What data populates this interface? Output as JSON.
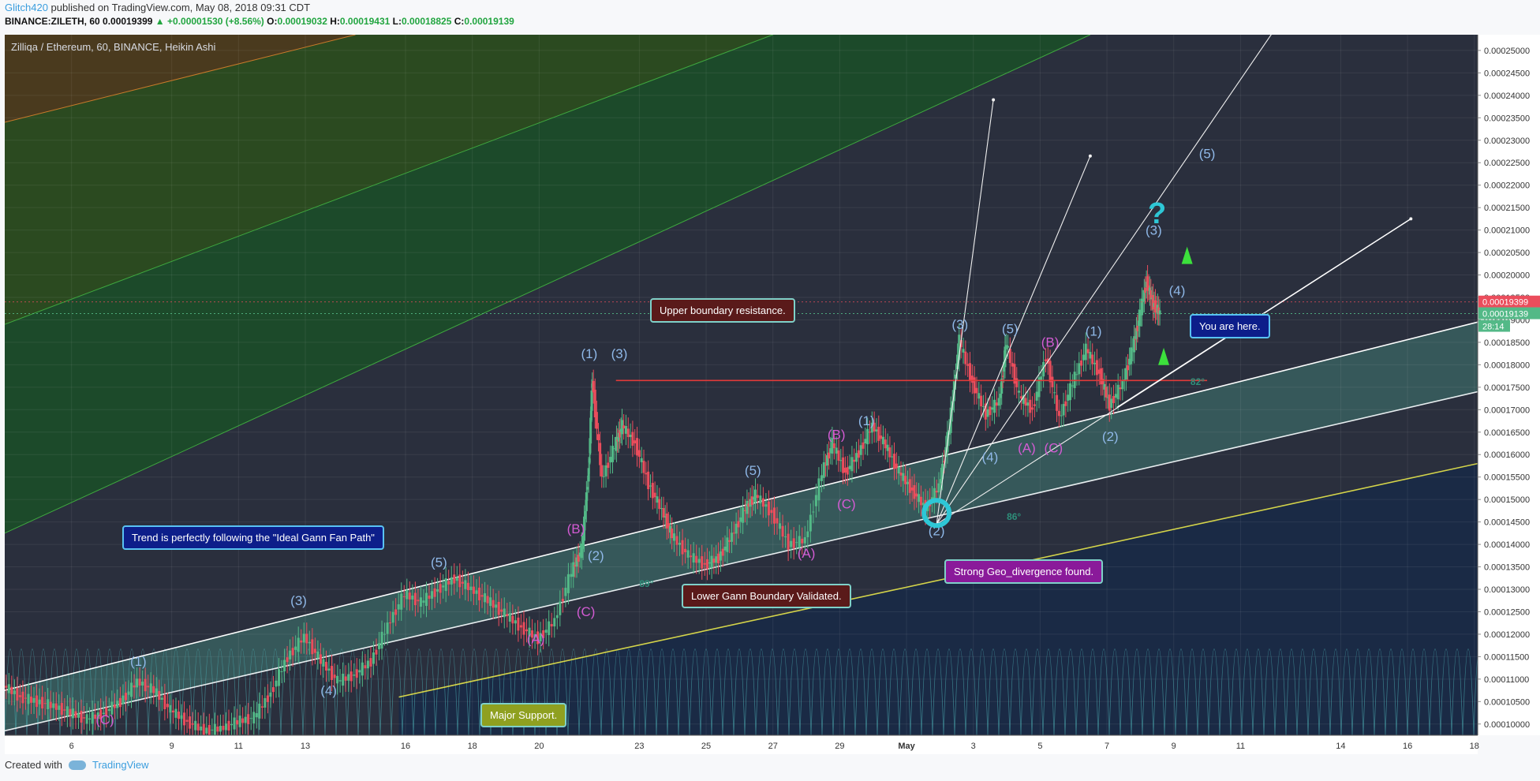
{
  "header": {
    "author": "Glitch420",
    "published": "published on TradingView.com, May 08, 2018 09:31 CDT",
    "symbol": "BINANCE:ZILETH, 60",
    "last": "0.00019399",
    "change": "+0.00001530 (+8.56%)",
    "o_label": "O:",
    "open": "0.00019032",
    "h_label": "H:",
    "high": "0.00019431",
    "l_label": "L:",
    "low": "0.00018825",
    "c_label": "C:",
    "close": "0.00019139"
  },
  "chart_title": "Zilliqa / Ethereum, 60, BINANCE, Heikin Ashi",
  "footer": {
    "created_with": "Created with",
    "brand": "TradingView"
  },
  "colors": {
    "background": "#2a2f3d",
    "up": "#53b987",
    "down": "#eb4d5c",
    "support": "#d4d44a",
    "resistance": "#e03a3a",
    "label_blue": "#8fb8e8",
    "label_magenta": "#d35bd3"
  },
  "chart_data": {
    "type": "line",
    "chart_style": "Heikin Ashi candlestick",
    "ylim": [
      9.75e-05,
      0.0002535
    ],
    "y_ticks": [
      "0.00025000",
      "0.00024500",
      "0.00024000",
      "0.00023500",
      "0.00023000",
      "0.00022500",
      "0.00022000",
      "0.00021500",
      "0.00021000",
      "0.00020500",
      "0.00020000",
      "0.00019500",
      "0.00019000",
      "0.00018500",
      "0.00018000",
      "0.00017500",
      "0.00017000",
      "0.00016500",
      "0.00016000",
      "0.00015500",
      "0.00015000",
      "0.00014500",
      "0.00014000",
      "0.00013500",
      "0.00013000",
      "0.00012500",
      "0.00012000",
      "0.00011500",
      "0.00011000",
      "0.00010500",
      "0.00010000"
    ],
    "x_ticks": [
      {
        "label": "6",
        "day": 6
      },
      {
        "label": "9",
        "day": 9
      },
      {
        "label": "11",
        "day": 11
      },
      {
        "label": "13",
        "day": 13
      },
      {
        "label": "16",
        "day": 16
      },
      {
        "label": "18",
        "day": 18
      },
      {
        "label": "20",
        "day": 20
      },
      {
        "label": "23",
        "day": 23
      },
      {
        "label": "25",
        "day": 25
      },
      {
        "label": "27",
        "day": 27
      },
      {
        "label": "29",
        "day": 29
      },
      {
        "label": "May",
        "day": 31
      },
      {
        "label": "3",
        "day": 33
      },
      {
        "label": "5",
        "day": 35
      },
      {
        "label": "7",
        "day": 37
      },
      {
        "label": "9",
        "day": 39
      },
      {
        "label": "11",
        "day": 41
      },
      {
        "label": "14",
        "day": 44
      },
      {
        "label": "16",
        "day": 46
      },
      {
        "label": "18",
        "day": 48
      }
    ],
    "xlim": [
      4.0,
      48.1
    ],
    "price_series": [
      [
        4.0,
        0.0001085
      ],
      [
        4.5,
        0.000106
      ],
      [
        5.0,
        0.000105
      ],
      [
        5.5,
        0.000104
      ],
      [
        6.0,
        0.0001025
      ],
      [
        6.5,
        0.000101
      ],
      [
        7.0,
        0.0001025
      ],
      [
        7.5,
        0.000105
      ],
      [
        8.0,
        0.0001095
      ],
      [
        8.5,
        0.0001075
      ],
      [
        9.0,
        0.000103
      ],
      [
        9.5,
        0.0001005
      ],
      [
        10.0,
        9.85e-05
      ],
      [
        10.5,
        9.9e-05
      ],
      [
        11.0,
        0.0001005
      ],
      [
        11.5,
        0.0001015
      ],
      [
        12.0,
        0.000107
      ],
      [
        12.5,
        0.000115
      ],
      [
        13.0,
        0.0001195
      ],
      [
        13.5,
        0.000114
      ],
      [
        14.0,
        0.0001095
      ],
      [
        14.5,
        0.000111
      ],
      [
        15.0,
        0.000114
      ],
      [
        15.5,
        0.000122
      ],
      [
        16.0,
        0.000129
      ],
      [
        16.5,
        0.000127
      ],
      [
        17.0,
        0.00013
      ],
      [
        17.5,
        0.0001325
      ],
      [
        18.0,
        0.00013
      ],
      [
        18.5,
        0.0001275
      ],
      [
        19.0,
        0.0001245
      ],
      [
        19.5,
        0.0001215
      ],
      [
        20.0,
        0.000119
      ],
      [
        20.5,
        0.000123
      ],
      [
        21.0,
        0.000134
      ],
      [
        21.3,
        0.000139
      ],
      [
        21.5,
        0.000157
      ],
      [
        21.6,
        0.000177
      ],
      [
        21.9,
        0.0001545
      ],
      [
        22.3,
        0.000162
      ],
      [
        22.5,
        0.0001665
      ],
      [
        22.9,
        0.0001625
      ],
      [
        23.3,
        0.0001535
      ],
      [
        23.7,
        0.0001475
      ],
      [
        24.0,
        0.000142
      ],
      [
        24.5,
        0.0001375
      ],
      [
        25.0,
        0.0001355
      ],
      [
        25.4,
        0.000137
      ],
      [
        25.8,
        0.000142
      ],
      [
        26.2,
        0.000148
      ],
      [
        26.5,
        0.000151
      ],
      [
        27.0,
        0.000147
      ],
      [
        27.5,
        0.00014
      ],
      [
        28.0,
        0.000141
      ],
      [
        28.5,
        0.000156
      ],
      [
        28.8,
        0.0001625
      ],
      [
        29.2,
        0.000156
      ],
      [
        29.6,
        0.0001605
      ],
      [
        30.0,
        0.0001665
      ],
      [
        30.4,
        0.000162
      ],
      [
        30.8,
        0.000156
      ],
      [
        31.2,
        0.000152
      ],
      [
        31.6,
        0.000148
      ],
      [
        32.0,
        0.000153
      ],
      [
        32.3,
        0.000166
      ],
      [
        32.6,
        0.0001855
      ],
      [
        33.0,
        0.000176
      ],
      [
        33.4,
        0.000169
      ],
      [
        33.8,
        0.000172
      ],
      [
        34.0,
        0.000185
      ],
      [
        34.4,
        0.000173
      ],
      [
        34.8,
        0.00017
      ],
      [
        35.2,
        0.000182
      ],
      [
        35.6,
        0.000168
      ],
      [
        36.0,
        0.000176
      ],
      [
        36.4,
        0.0001835
      ],
      [
        36.8,
        0.000178
      ],
      [
        37.1,
        0.000171
      ],
      [
        37.5,
        0.000176
      ],
      [
        37.8,
        0.000184
      ],
      [
        38.0,
        0.000191
      ],
      [
        38.2,
        0.0001985
      ],
      [
        38.4,
        0.0001935
      ],
      [
        38.6,
        0.0001915
      ]
    ],
    "last_price": "0.00019399",
    "close_price": "0.00019139",
    "countdown": "28:14",
    "horizontal_resistance": {
      "price": 0.0001765,
      "x_start": 22.3,
      "x_end": 40.0
    },
    "channel_upper": {
      "from": [
        4.0,
        0.0001075
      ],
      "to": [
        48.1,
        0.0001895
      ]
    },
    "channel_lower": {
      "from": [
        4.0,
        9.85e-05
      ],
      "to": [
        48.1,
        0.000174
      ]
    },
    "support_line": {
      "from": [
        15.8,
        0.000106
      ],
      "to": [
        48.1,
        0.000158
      ]
    },
    "bg_fan_lines": [
      {
        "from": [
          4.0,
          0.0001425
        ],
        "to": [
          36.5,
          0.0002535
        ]
      },
      {
        "from": [
          4.0,
          0.000189
        ],
        "to": [
          27.0,
          0.0002535
        ]
      },
      {
        "from": [
          4.0,
          0.000234
        ],
        "to": [
          14.5,
          0.0002535
        ]
      }
    ],
    "gann_fan": {
      "origin": [
        31.9,
        0.0001445
      ],
      "targets": [
        [
          33.6,
          0.000239
        ],
        [
          36.5,
          0.0002265
        ],
        [
          42.1,
          0.0002555
        ],
        [
          46.1,
          0.0002125
        ]
      ]
    },
    "wave_labels": [
      {
        "text": "(C)",
        "x": 7.0,
        "y": 0.0001,
        "color": "magenta"
      },
      {
        "text": "(1)",
        "x": 8.0,
        "y": 0.000113,
        "color": "blue"
      },
      {
        "text": "(3)",
        "x": 12.8,
        "y": 0.0001265,
        "color": "blue"
      },
      {
        "text": "(4)",
        "x": 13.7,
        "y": 0.0001065,
        "color": "blue"
      },
      {
        "text": "(5)",
        "x": 17.0,
        "y": 0.000135,
        "color": "blue"
      },
      {
        "text": "(A)",
        "x": 19.9,
        "y": 0.000118,
        "color": "magenta"
      },
      {
        "text": "(B)",
        "x": 21.1,
        "y": 0.0001425,
        "color": "magenta"
      },
      {
        "text": "(2)",
        "x": 21.7,
        "y": 0.0001365,
        "color": "blue"
      },
      {
        "text": "(C)",
        "x": 21.4,
        "y": 0.000124,
        "color": "magenta"
      },
      {
        "text": "(1)",
        "x": 21.5,
        "y": 0.0001815,
        "color": "blue"
      },
      {
        "text": "(3)",
        "x": 22.4,
        "y": 0.0001815,
        "color": "blue"
      },
      {
        "text": "(4)",
        "x": 24.9,
        "y": 0.0001285,
        "color": "blue"
      },
      {
        "text": "(5)",
        "x": 26.4,
        "y": 0.0001555,
        "color": "blue"
      },
      {
        "text": "(A)",
        "x": 28.0,
        "y": 0.000137,
        "color": "magenta"
      },
      {
        "text": "(B)",
        "x": 28.9,
        "y": 0.0001635,
        "color": "magenta"
      },
      {
        "text": "(C)",
        "x": 29.2,
        "y": 0.000148,
        "color": "magenta"
      },
      {
        "text": "(1)",
        "x": 29.8,
        "y": 0.0001665,
        "color": "blue"
      },
      {
        "text": "(3)",
        "x": 32.6,
        "y": 0.000188,
        "color": "blue"
      },
      {
        "text": "(4)",
        "x": 33.5,
        "y": 0.0001585,
        "color": "blue"
      },
      {
        "text": "(5)",
        "x": 34.1,
        "y": 0.000187,
        "color": "blue"
      },
      {
        "text": "(A)",
        "x": 34.6,
        "y": 0.0001605,
        "color": "magenta"
      },
      {
        "text": "(B)",
        "x": 35.3,
        "y": 0.000184,
        "color": "magenta"
      },
      {
        "text": "(C)",
        "x": 35.4,
        "y": 0.0001605,
        "color": "magenta"
      },
      {
        "text": "(1)",
        "x": 36.6,
        "y": 0.0001865,
        "color": "blue"
      },
      {
        "text": "(2)",
        "x": 37.1,
        "y": 0.000163,
        "color": "blue"
      },
      {
        "text": "(3)",
        "x": 38.4,
        "y": 0.000209,
        "color": "blue"
      },
      {
        "text": "(4)",
        "x": 39.1,
        "y": 0.0001955,
        "color": "blue"
      },
      {
        "text": "(5)",
        "x": 40.0,
        "y": 0.000226,
        "color": "blue"
      },
      {
        "text": "(2)",
        "x": 31.9,
        "y": 0.000142,
        "color": "blue"
      }
    ],
    "angle_labels": [
      {
        "text": "89°",
        "x": 23.0,
        "y": 0.0001305
      },
      {
        "text": "86°",
        "x": 34.0,
        "y": 0.0001455
      },
      {
        "text": "82°",
        "x": 39.5,
        "y": 0.0001755
      }
    ],
    "annotations": [
      {
        "text": "Upper boundary resistance."
      },
      {
        "text": "Trend is perfectly following the \"Ideal Gann Fan Path\""
      },
      {
        "text": "Lower Gann Boundary Validated."
      },
      {
        "text": "Strong Geo_divergence found."
      },
      {
        "text": "Major Support."
      },
      {
        "text": "You are here."
      }
    ],
    "question_mark": "?"
  }
}
